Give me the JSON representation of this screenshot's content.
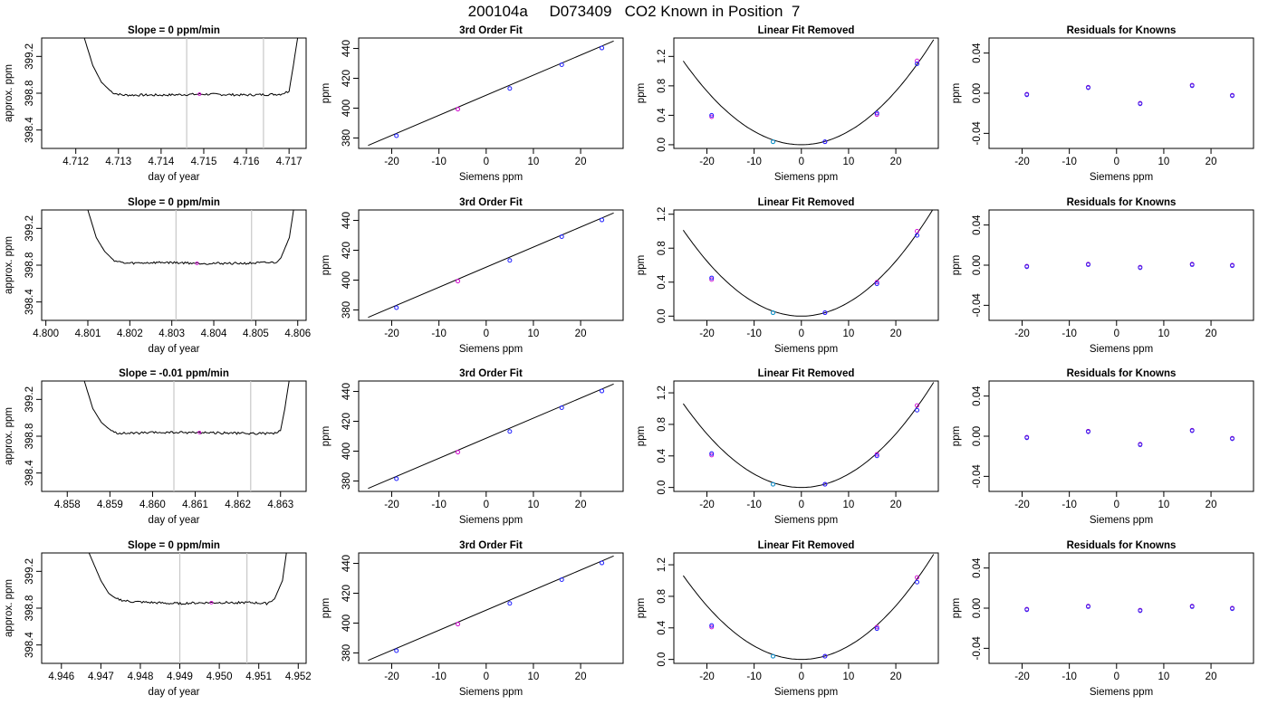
{
  "page_title": "200104a     D073409   CO2 Known in Position  7",
  "axis_labels": {
    "approx_ppm": "approx. ppm",
    "day_of_year": "day of year",
    "ppm": "ppm",
    "siemens_ppm": "Siemens ppm"
  },
  "panel_titles": {
    "third_order": "3rd Order Fit",
    "linear_removed": "Linear Fit Removed",
    "residuals": "Residuals for Knowns"
  },
  "colors": {
    "axis": "#000000",
    "trace": "#000000",
    "vline": "#c8c8c8",
    "point_blue": "#1f1fff",
    "point_magenta": "#d000d0",
    "point_cyan": "#00a0c8",
    "point_purple": "#7a00cc"
  },
  "chart_data": [
    {
      "type": "line",
      "row": 0,
      "col": 0,
      "kind": "timeseries",
      "title": "Slope =  0  ppm/min",
      "xlabel": "day of year",
      "ylabel": "approx. ppm",
      "xlim": [
        4.7112,
        4.7174
      ],
      "ylim": [
        398.2,
        399.4
      ],
      "xticks": [
        "4.712",
        "4.713",
        "4.714",
        "4.715",
        "4.716",
        "4.717"
      ],
      "yticks": [
        "398.4",
        "398.8",
        "399.2"
      ],
      "vlines": [
        4.7146,
        4.7164
      ],
      "x": [
        4.7122,
        4.7124,
        4.7126,
        4.7128,
        4.7129,
        4.7131,
        4.714,
        4.715,
        4.716,
        4.7168,
        4.717,
        4.7171,
        4.7172
      ],
      "y": [
        399.4,
        399.1,
        398.92,
        398.83,
        398.8,
        398.78,
        398.78,
        398.79,
        398.78,
        398.79,
        398.82,
        399.1,
        399.4
      ],
      "marker": {
        "x": 4.7149,
        "y": 398.79
      }
    },
    {
      "type": "scatter",
      "row": 0,
      "col": 1,
      "kind": "fit3",
      "title": "3rd Order Fit",
      "xlabel": "Siemens ppm",
      "ylabel": "ppm",
      "xlim": [
        -27,
        29
      ],
      "ylim": [
        373,
        447
      ],
      "xticks": [
        "-20",
        "-10",
        "0",
        "10",
        "20"
      ],
      "yticks": [
        "380",
        "400",
        "420",
        "440"
      ],
      "x": [
        -19,
        -6,
        5,
        16,
        24.5
      ],
      "y": [
        381.5,
        399.3,
        413.2,
        429.1,
        440.3
      ],
      "line": {
        "x": [
          -25,
          27
        ],
        "y": [
          375,
          445
        ]
      }
    },
    {
      "type": "scatter",
      "row": 0,
      "col": 2,
      "kind": "linremoved",
      "title": "Linear Fit Removed",
      "xlabel": "Siemens ppm",
      "ylabel": "ppm",
      "xlim": [
        -27,
        29
      ],
      "ylim": [
        -0.05,
        1.45
      ],
      "xticks": [
        "-20",
        "-10",
        "0",
        "10",
        "20"
      ],
      "yticks": [
        "0.0",
        "0.4",
        "0.8",
        "1.2"
      ],
      "x": [
        -19,
        -6,
        5,
        16,
        24.5
      ],
      "y": [
        0.4,
        0.04,
        0.04,
        0.43,
        1.1
      ],
      "y2": [
        0.38,
        0.04,
        0.04,
        0.41,
        1.14
      ],
      "curve_a": 0.00182
    },
    {
      "type": "scatter",
      "row": 0,
      "col": 3,
      "kind": "residuals",
      "title": "Residuals for Knowns",
      "xlabel": "Siemens ppm",
      "ylabel": "ppm",
      "xlim": [
        -27,
        29
      ],
      "ylim": [
        -0.055,
        0.055
      ],
      "xticks": [
        "-20",
        "-10",
        "0",
        "10",
        "20"
      ],
      "yticks": [
        "-0.04",
        "0.00",
        "0.04"
      ],
      "x": [
        -19,
        -6,
        5,
        16,
        24.5
      ],
      "y": [
        -0.001,
        0.006,
        -0.01,
        0.008,
        -0.002
      ]
    },
    {
      "type": "line",
      "row": 1,
      "col": 0,
      "kind": "timeseries",
      "title": "Slope =  0  ppm/min",
      "xlabel": "day of year",
      "ylabel": "approx. ppm",
      "xlim": [
        4.7999,
        4.8062
      ],
      "ylim": [
        398.2,
        399.4
      ],
      "xticks": [
        "4.800",
        "4.801",
        "4.802",
        "4.803",
        "4.804",
        "4.805",
        "4.806"
      ],
      "yticks": [
        "398.4",
        "398.8",
        "399.2"
      ],
      "vlines": [
        4.8031,
        4.8049
      ],
      "x": [
        4.801,
        4.8012,
        4.8014,
        4.8016,
        4.8017,
        4.8019,
        4.8028,
        4.8038,
        4.8048,
        4.8055,
        4.8056,
        4.8058,
        4.8059
      ],
      "y": [
        399.4,
        399.1,
        398.95,
        398.86,
        398.84,
        398.82,
        398.83,
        398.82,
        398.82,
        398.83,
        398.88,
        399.1,
        399.4
      ],
      "marker": {
        "x": 4.8036,
        "y": 398.82
      }
    },
    {
      "type": "scatter",
      "row": 1,
      "col": 1,
      "kind": "fit3",
      "title": "3rd Order Fit",
      "xlabel": "Siemens ppm",
      "ylabel": "ppm",
      "xlim": [
        -27,
        29
      ],
      "ylim": [
        373,
        447
      ],
      "xticks": [
        "-20",
        "-10",
        "0",
        "10",
        "20"
      ],
      "yticks": [
        "380",
        "400",
        "420",
        "440"
      ],
      "x": [
        -19,
        -6,
        5,
        16,
        24.5
      ],
      "y": [
        381.5,
        399.3,
        413.2,
        429.1,
        440.3
      ],
      "line": {
        "x": [
          -25,
          27
        ],
        "y": [
          375,
          445
        ]
      }
    },
    {
      "type": "scatter",
      "row": 1,
      "col": 2,
      "kind": "linremoved",
      "title": "Linear Fit Removed",
      "xlabel": "Siemens ppm",
      "ylabel": "ppm",
      "xlim": [
        -27,
        29
      ],
      "ylim": [
        -0.05,
        1.25
      ],
      "xticks": [
        "-20",
        "-10",
        "0",
        "10",
        "20"
      ],
      "yticks": [
        "0.0",
        "0.4",
        "0.8",
        "1.2"
      ],
      "x": [
        -19,
        -6,
        5,
        16,
        24.5
      ],
      "y": [
        0.45,
        0.04,
        0.04,
        0.38,
        0.95
      ],
      "y2": [
        0.43,
        0.04,
        0.04,
        0.4,
        1.0
      ],
      "curve_a": 0.00162
    },
    {
      "type": "scatter",
      "row": 1,
      "col": 3,
      "kind": "residuals",
      "title": "Residuals for Knowns",
      "xlabel": "Siemens ppm",
      "ylabel": "ppm",
      "xlim": [
        -27,
        29
      ],
      "ylim": [
        -0.055,
        0.055
      ],
      "xticks": [
        "-20",
        "-10",
        "0",
        "10",
        "20"
      ],
      "yticks": [
        "-0.04",
        "0.00",
        "0.04"
      ],
      "x": [
        -19,
        -6,
        5,
        16,
        24.5
      ],
      "y": [
        -0.001,
        0.001,
        -0.002,
        0.001,
        0.0
      ]
    },
    {
      "type": "line",
      "row": 2,
      "col": 0,
      "kind": "timeseries",
      "title": "Slope =  -0.01  ppm/min",
      "xlabel": "day of year",
      "ylabel": "approx. ppm",
      "xlim": [
        4.8574,
        4.8636
      ],
      "ylim": [
        398.2,
        399.4
      ],
      "xticks": [
        "4.858",
        "4.859",
        "4.860",
        "4.861",
        "4.862",
        "4.863"
      ],
      "yticks": [
        "398.4",
        "398.8",
        "399.2"
      ],
      "vlines": [
        4.8605,
        4.8623
      ],
      "x": [
        4.8584,
        4.8586,
        4.8588,
        4.859,
        4.8591,
        4.8593,
        4.8602,
        4.8612,
        4.8622,
        4.8629,
        4.863,
        4.8631,
        4.8632
      ],
      "y": [
        399.4,
        399.1,
        398.95,
        398.87,
        398.84,
        398.83,
        398.84,
        398.84,
        398.83,
        398.83,
        398.86,
        399.1,
        399.4
      ],
      "marker": {
        "x": 4.8611,
        "y": 398.84
      }
    },
    {
      "type": "scatter",
      "row": 2,
      "col": 1,
      "kind": "fit3",
      "title": "3rd Order Fit",
      "xlabel": "Siemens ppm",
      "ylabel": "ppm",
      "xlim": [
        -27,
        29
      ],
      "ylim": [
        373,
        447
      ],
      "xticks": [
        "-20",
        "-10",
        "0",
        "10",
        "20"
      ],
      "yticks": [
        "380",
        "400",
        "420",
        "440"
      ],
      "x": [
        -19,
        -6,
        5,
        16,
        24.5
      ],
      "y": [
        381.5,
        399.3,
        413.2,
        429.1,
        440.3
      ],
      "line": {
        "x": [
          -25,
          27
        ],
        "y": [
          375,
          445
        ]
      }
    },
    {
      "type": "scatter",
      "row": 2,
      "col": 2,
      "kind": "linremoved",
      "title": "Linear Fit Removed",
      "xlabel": "Siemens ppm",
      "ylabel": "ppm",
      "xlim": [
        -27,
        29
      ],
      "ylim": [
        -0.05,
        1.35
      ],
      "xticks": [
        "-20",
        "-10",
        "0",
        "10",
        "20"
      ],
      "yticks": [
        "0.0",
        "0.4",
        "0.8",
        "1.2"
      ],
      "x": [
        -19,
        -6,
        5,
        16,
        24.5
      ],
      "y": [
        0.43,
        0.04,
        0.04,
        0.4,
        0.98
      ],
      "y2": [
        0.41,
        0.04,
        0.04,
        0.42,
        1.04
      ],
      "curve_a": 0.0017
    },
    {
      "type": "scatter",
      "row": 2,
      "col": 3,
      "kind": "residuals",
      "title": "Residuals for Knowns",
      "xlabel": "Siemens ppm",
      "ylabel": "ppm",
      "xlim": [
        -27,
        29
      ],
      "ylim": [
        -0.055,
        0.055
      ],
      "xticks": [
        "-20",
        "-10",
        "0",
        "10",
        "20"
      ],
      "yticks": [
        "-0.04",
        "0.00",
        "0.04"
      ],
      "x": [
        -19,
        -6,
        5,
        16,
        24.5
      ],
      "y": [
        -0.001,
        0.005,
        -0.008,
        0.006,
        -0.002
      ]
    },
    {
      "type": "line",
      "row": 3,
      "col": 0,
      "kind": "timeseries",
      "title": "Slope =  0  ppm/min",
      "xlabel": "day of year",
      "ylabel": "approx. ppm",
      "xlim": [
        4.9455,
        4.9522
      ],
      "ylim": [
        398.2,
        399.4
      ],
      "xticks": [
        "4.946",
        "4.947",
        "4.948",
        "4.949",
        "4.950",
        "4.951",
        "4.952"
      ],
      "yticks": [
        "398.4",
        "398.8",
        "399.2"
      ],
      "vlines": [
        4.949,
        4.9507
      ],
      "x": [
        4.9467,
        4.947,
        4.9472,
        4.9474,
        4.9476,
        4.9478,
        4.9488,
        4.9498,
        4.9508,
        4.9512,
        4.9514,
        4.9516,
        4.9517
      ],
      "y": [
        399.4,
        399.1,
        398.96,
        398.9,
        398.88,
        398.87,
        398.85,
        398.86,
        398.86,
        398.85,
        398.9,
        399.1,
        399.4
      ],
      "marker": {
        "x": 4.9498,
        "y": 398.86
      }
    },
    {
      "type": "scatter",
      "row": 3,
      "col": 1,
      "kind": "fit3",
      "title": "3rd Order Fit",
      "xlabel": "Siemens ppm",
      "ylabel": "ppm",
      "xlim": [
        -27,
        29
      ],
      "ylim": [
        373,
        447
      ],
      "xticks": [
        "-20",
        "-10",
        "0",
        "10",
        "20"
      ],
      "yticks": [
        "380",
        "400",
        "420",
        "440"
      ],
      "x": [
        -19,
        -6,
        5,
        16,
        24.5
      ],
      "y": [
        381.5,
        399.3,
        413.2,
        429.1,
        440.3
      ],
      "line": {
        "x": [
          -25,
          27
        ],
        "y": [
          375,
          445
        ]
      }
    },
    {
      "type": "scatter",
      "row": 3,
      "col": 2,
      "kind": "linremoved",
      "title": "Linear Fit Removed",
      "xlabel": "Siemens ppm",
      "ylabel": "ppm",
      "xlim": [
        -27,
        29
      ],
      "ylim": [
        -0.05,
        1.35
      ],
      "xticks": [
        "-20",
        "-10",
        "0",
        "10",
        "20"
      ],
      "yticks": [
        "0.0",
        "0.4",
        "0.8",
        "1.2"
      ],
      "x": [
        -19,
        -6,
        5,
        16,
        24.5
      ],
      "y": [
        0.43,
        0.04,
        0.04,
        0.39,
        0.98
      ],
      "y2": [
        0.41,
        0.04,
        0.04,
        0.41,
        1.04
      ],
      "curve_a": 0.0017
    },
    {
      "type": "scatter",
      "row": 3,
      "col": 3,
      "kind": "residuals",
      "title": "Residuals for Knowns",
      "xlabel": "Siemens ppm",
      "ylabel": "ppm",
      "xlim": [
        -27,
        29
      ],
      "ylim": [
        -0.055,
        0.055
      ],
      "xticks": [
        "-20",
        "-10",
        "0",
        "10",
        "20"
      ],
      "yticks": [
        "-0.04",
        "0.00",
        "0.04"
      ],
      "x": [
        -19,
        -6,
        5,
        16,
        24.5
      ],
      "y": [
        -0.001,
        0.002,
        -0.002,
        0.002,
        0.0
      ]
    }
  ]
}
